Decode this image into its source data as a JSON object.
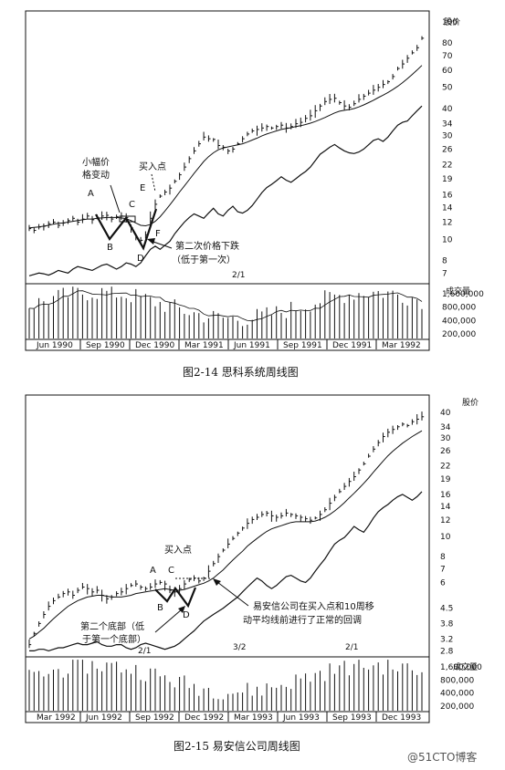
{
  "chart_data": [
    {
      "type": "line",
      "title": "",
      "caption": "图2-14   思科系统周线图",
      "price_label": "股价",
      "volume_label": "成交量",
      "y_scale": "log",
      "price_ticks": [
        100,
        80,
        70,
        60,
        50,
        40,
        34,
        30,
        26,
        22,
        19,
        16,
        14,
        12,
        10,
        8,
        7
      ],
      "ylim": [
        6.5,
        110
      ],
      "volume_ticks": [
        "1,600,000",
        "800,000",
        "400,000",
        "200,000"
      ],
      "x_labels": [
        "Jun 1990",
        "Sep 1990",
        "Dec 1990",
        "Mar 1991",
        "Jun 1991",
        "Sep 1991",
        "Dec 1991",
        "Mar 1992"
      ],
      "split_marker": "2/1",
      "series": [
        {
          "values": [
            11.2,
            11.0,
            11.4,
            11.5,
            11.8,
            12.0,
            11.6,
            11.9,
            12.2,
            12.5,
            12.0,
            12.4,
            12.8,
            12.3,
            12.6,
            12.8,
            12.9,
            12.4,
            12.7,
            12.8,
            12.6,
            11.3,
            10.2,
            9.9,
            10.5,
            12.5,
            14.5,
            15.8,
            16.5,
            17.2,
            18.5,
            19.8,
            21.5,
            23.5,
            25.5,
            27.5,
            29.5,
            29.0,
            28.8,
            27.0,
            26.5,
            25.5,
            26.0,
            27.5,
            29.0,
            30.5,
            31.5,
            32.0,
            32.5,
            33.0,
            32.5,
            33.0,
            33.5,
            32.5,
            33.0,
            34.0,
            34.5,
            36.0,
            37.0,
            39.0,
            41.0,
            43.0,
            44.0,
            44.5,
            42.5,
            41.0,
            40.5,
            42.0,
            44.0,
            45.5,
            47.0,
            48.5,
            50.0,
            51.5,
            53.0,
            56.0,
            61.0,
            64.0,
            68.0,
            72.0,
            76.0,
            84.0
          ]
        },
        {
          "values": [
            11.3,
            11.35,
            11.4,
            11.5,
            11.6,
            11.75,
            11.85,
            11.9,
            12.0,
            12.1,
            12.2,
            12.3,
            12.4,
            12.4,
            12.5,
            12.55,
            12.6,
            12.6,
            12.6,
            12.55,
            12.45,
            12.2,
            11.9,
            11.6,
            11.55,
            11.7,
            12.1,
            12.7,
            13.5,
            14.4,
            15.4,
            16.5,
            17.6,
            18.8,
            20.1,
            21.4,
            22.8,
            24.0,
            25.0,
            25.8,
            26.3,
            26.6,
            26.9,
            27.2,
            27.5,
            28.0,
            28.6,
            29.2,
            29.9,
            30.5,
            31.0,
            31.5,
            32.0,
            32.3,
            32.6,
            33.0,
            33.3,
            33.7,
            34.2,
            34.8,
            35.5,
            36.3,
            37.2,
            38.1,
            38.8,
            39.2,
            39.5,
            39.9,
            40.6,
            41.5,
            42.5,
            43.6,
            44.8,
            46.0,
            47.3,
            48.8,
            50.5,
            52.5,
            54.8,
            57.3,
            60.0,
            63.0
          ]
        },
        {
          "values": [
            6.8,
            6.9,
            7.0,
            6.95,
            6.85,
            7.0,
            7.2,
            7.1,
            7.0,
            7.3,
            7.5,
            7.4,
            7.3,
            7.2,
            7.4,
            7.6,
            7.7,
            7.5,
            7.3,
            7.5,
            7.8,
            7.7,
            7.5,
            7.8,
            8.4,
            9.0,
            9.3,
            9.0,
            9.4,
            9.8,
            10.6,
            11.3,
            12.0,
            12.6,
            13.1,
            12.8,
            12.5,
            13.2,
            13.9,
            13.1,
            12.8,
            13.6,
            14.2,
            13.4,
            13.2,
            13.6,
            14.3,
            15.3,
            16.4,
            17.3,
            17.9,
            18.6,
            19.4,
            18.7,
            18.3,
            19.0,
            19.8,
            20.5,
            21.5,
            23.0,
            24.6,
            25.5,
            26.5,
            27.3,
            26.3,
            25.5,
            25.0,
            24.8,
            25.2,
            26.0,
            27.2,
            28.5,
            29.0,
            28.2,
            29.5,
            31.5,
            33.5,
            34.5,
            35.0,
            37.0,
            39.0,
            41.0
          ]
        }
      ],
      "annotations": {
        "A": "A",
        "B": "B",
        "C": "C",
        "D": "D",
        "E": "E",
        "F": "F",
        "small_range_1": "小幅价",
        "small_range_2": "格变动",
        "buy_point": "买入点",
        "second_drop_1": "第二次价格下跌",
        "second_drop_2": "（低于第一次）"
      }
    },
    {
      "type": "line",
      "title": "",
      "caption": "图2-15   易安信公司周线图",
      "price_label": "股价",
      "volume_label": "成交量",
      "y_scale": "log",
      "price_ticks": [
        40,
        34,
        30,
        26,
        22,
        19,
        16,
        14,
        12,
        10,
        8,
        7,
        6,
        4.5,
        3.8,
        3.2,
        2.8
      ],
      "ylim": [
        2.7,
        42
      ],
      "volume_ticks": [
        "1,600,000",
        "800,000",
        "400,000",
        "200,000"
      ],
      "x_labels": [
        "Mar 1992",
        "Jun 1992",
        "Sep 1992",
        "Dec 1992",
        "Mar 1993",
        "Jun 1993",
        "Sep 1993",
        "Dec 1993"
      ],
      "split_markers": [
        "2/1",
        "3/2",
        "2/1"
      ],
      "series": [
        {
          "values": [
            3.0,
            3.4,
            3.8,
            4.2,
            4.6,
            4.9,
            5.1,
            5.3,
            5.4,
            5.2,
            5.5,
            5.7,
            5.6,
            5.4,
            5.5,
            5.2,
            5.0,
            5.1,
            5.3,
            5.4,
            5.6,
            5.8,
            5.9,
            5.7,
            5.6,
            5.7,
            5.9,
            6.0,
            5.9,
            5.5,
            5.4,
            5.6,
            5.9,
            6.2,
            6.3,
            6.1,
            6.3,
            6.8,
            7.4,
            8.0,
            8.6,
            9.2,
            9.8,
            10.4,
            11.0,
            11.6,
            12.1,
            12.4,
            12.8,
            13.0,
            12.6,
            12.4,
            12.6,
            13.0,
            12.8,
            12.6,
            12.4,
            12.2,
            12.0,
            12.3,
            12.8,
            13.5,
            14.5,
            15.5,
            16.5,
            17.5,
            18.5,
            19.5,
            21.0,
            22.5,
            24.5,
            26.5,
            28.5,
            30.5,
            32.0,
            33.0,
            34.0,
            35.0,
            34.5,
            36.0,
            37.0,
            38.0
          ]
        },
        {
          "values": [
            3.2,
            3.3,
            3.45,
            3.6,
            3.8,
            4.0,
            4.2,
            4.4,
            4.6,
            4.75,
            4.9,
            5.0,
            5.1,
            5.15,
            5.2,
            5.2,
            5.15,
            5.1,
            5.1,
            5.1,
            5.15,
            5.2,
            5.3,
            5.35,
            5.4,
            5.45,
            5.5,
            5.55,
            5.6,
            5.55,
            5.5,
            5.5,
            5.55,
            5.65,
            5.75,
            5.85,
            5.95,
            6.1,
            6.3,
            6.6,
            6.9,
            7.3,
            7.7,
            8.1,
            8.5,
            9.0,
            9.4,
            9.8,
            10.2,
            10.6,
            10.9,
            11.1,
            11.3,
            11.5,
            11.7,
            11.8,
            11.8,
            11.8,
            11.8,
            11.9,
            12.1,
            12.4,
            12.8,
            13.3,
            13.9,
            14.6,
            15.4,
            16.2,
            17.1,
            18.1,
            19.2,
            20.5,
            21.8,
            23.2,
            24.6,
            25.9,
            27.1,
            28.3,
            29.4,
            30.5,
            31.5,
            32.5
          ]
        },
        {
          "values": [
            2.8,
            2.8,
            2.85,
            2.85,
            2.8,
            2.85,
            2.9,
            2.9,
            2.95,
            3.0,
            3.05,
            3.0,
            3.0,
            3.05,
            3.1,
            3.0,
            2.95,
            2.95,
            3.0,
            3.0,
            2.9,
            2.85,
            2.9,
            3.0,
            3.05,
            3.0,
            2.95,
            2.9,
            2.85,
            2.9,
            2.95,
            3.05,
            3.2,
            3.35,
            3.5,
            3.7,
            3.9,
            4.05,
            4.2,
            4.35,
            4.5,
            4.7,
            4.9,
            5.1,
            5.4,
            5.7,
            6.0,
            6.3,
            6.1,
            5.8,
            5.6,
            5.8,
            6.1,
            6.4,
            6.5,
            6.3,
            6.1,
            6.0,
            6.3,
            6.8,
            7.3,
            7.8,
            8.5,
            9.2,
            9.6,
            9.9,
            10.5,
            11.2,
            10.8,
            10.5,
            11.3,
            12.3,
            13.2,
            13.8,
            14.3,
            15.0,
            15.6,
            16.0,
            15.5,
            15.0,
            15.6,
            16.5
          ]
        }
      ],
      "annotations": {
        "A": "A",
        "B": "B",
        "C": "C",
        "D": "D",
        "buy_point": "买入点",
        "pullback_1": "易安信公司在买入点和10周移",
        "pullback_2": "动平均线前进行了正常的回调",
        "second_bottom_1": "第二个底部（低",
        "second_bottom_2": "于第一个底部）"
      }
    }
  ],
  "watermark": "@51CTO博客"
}
